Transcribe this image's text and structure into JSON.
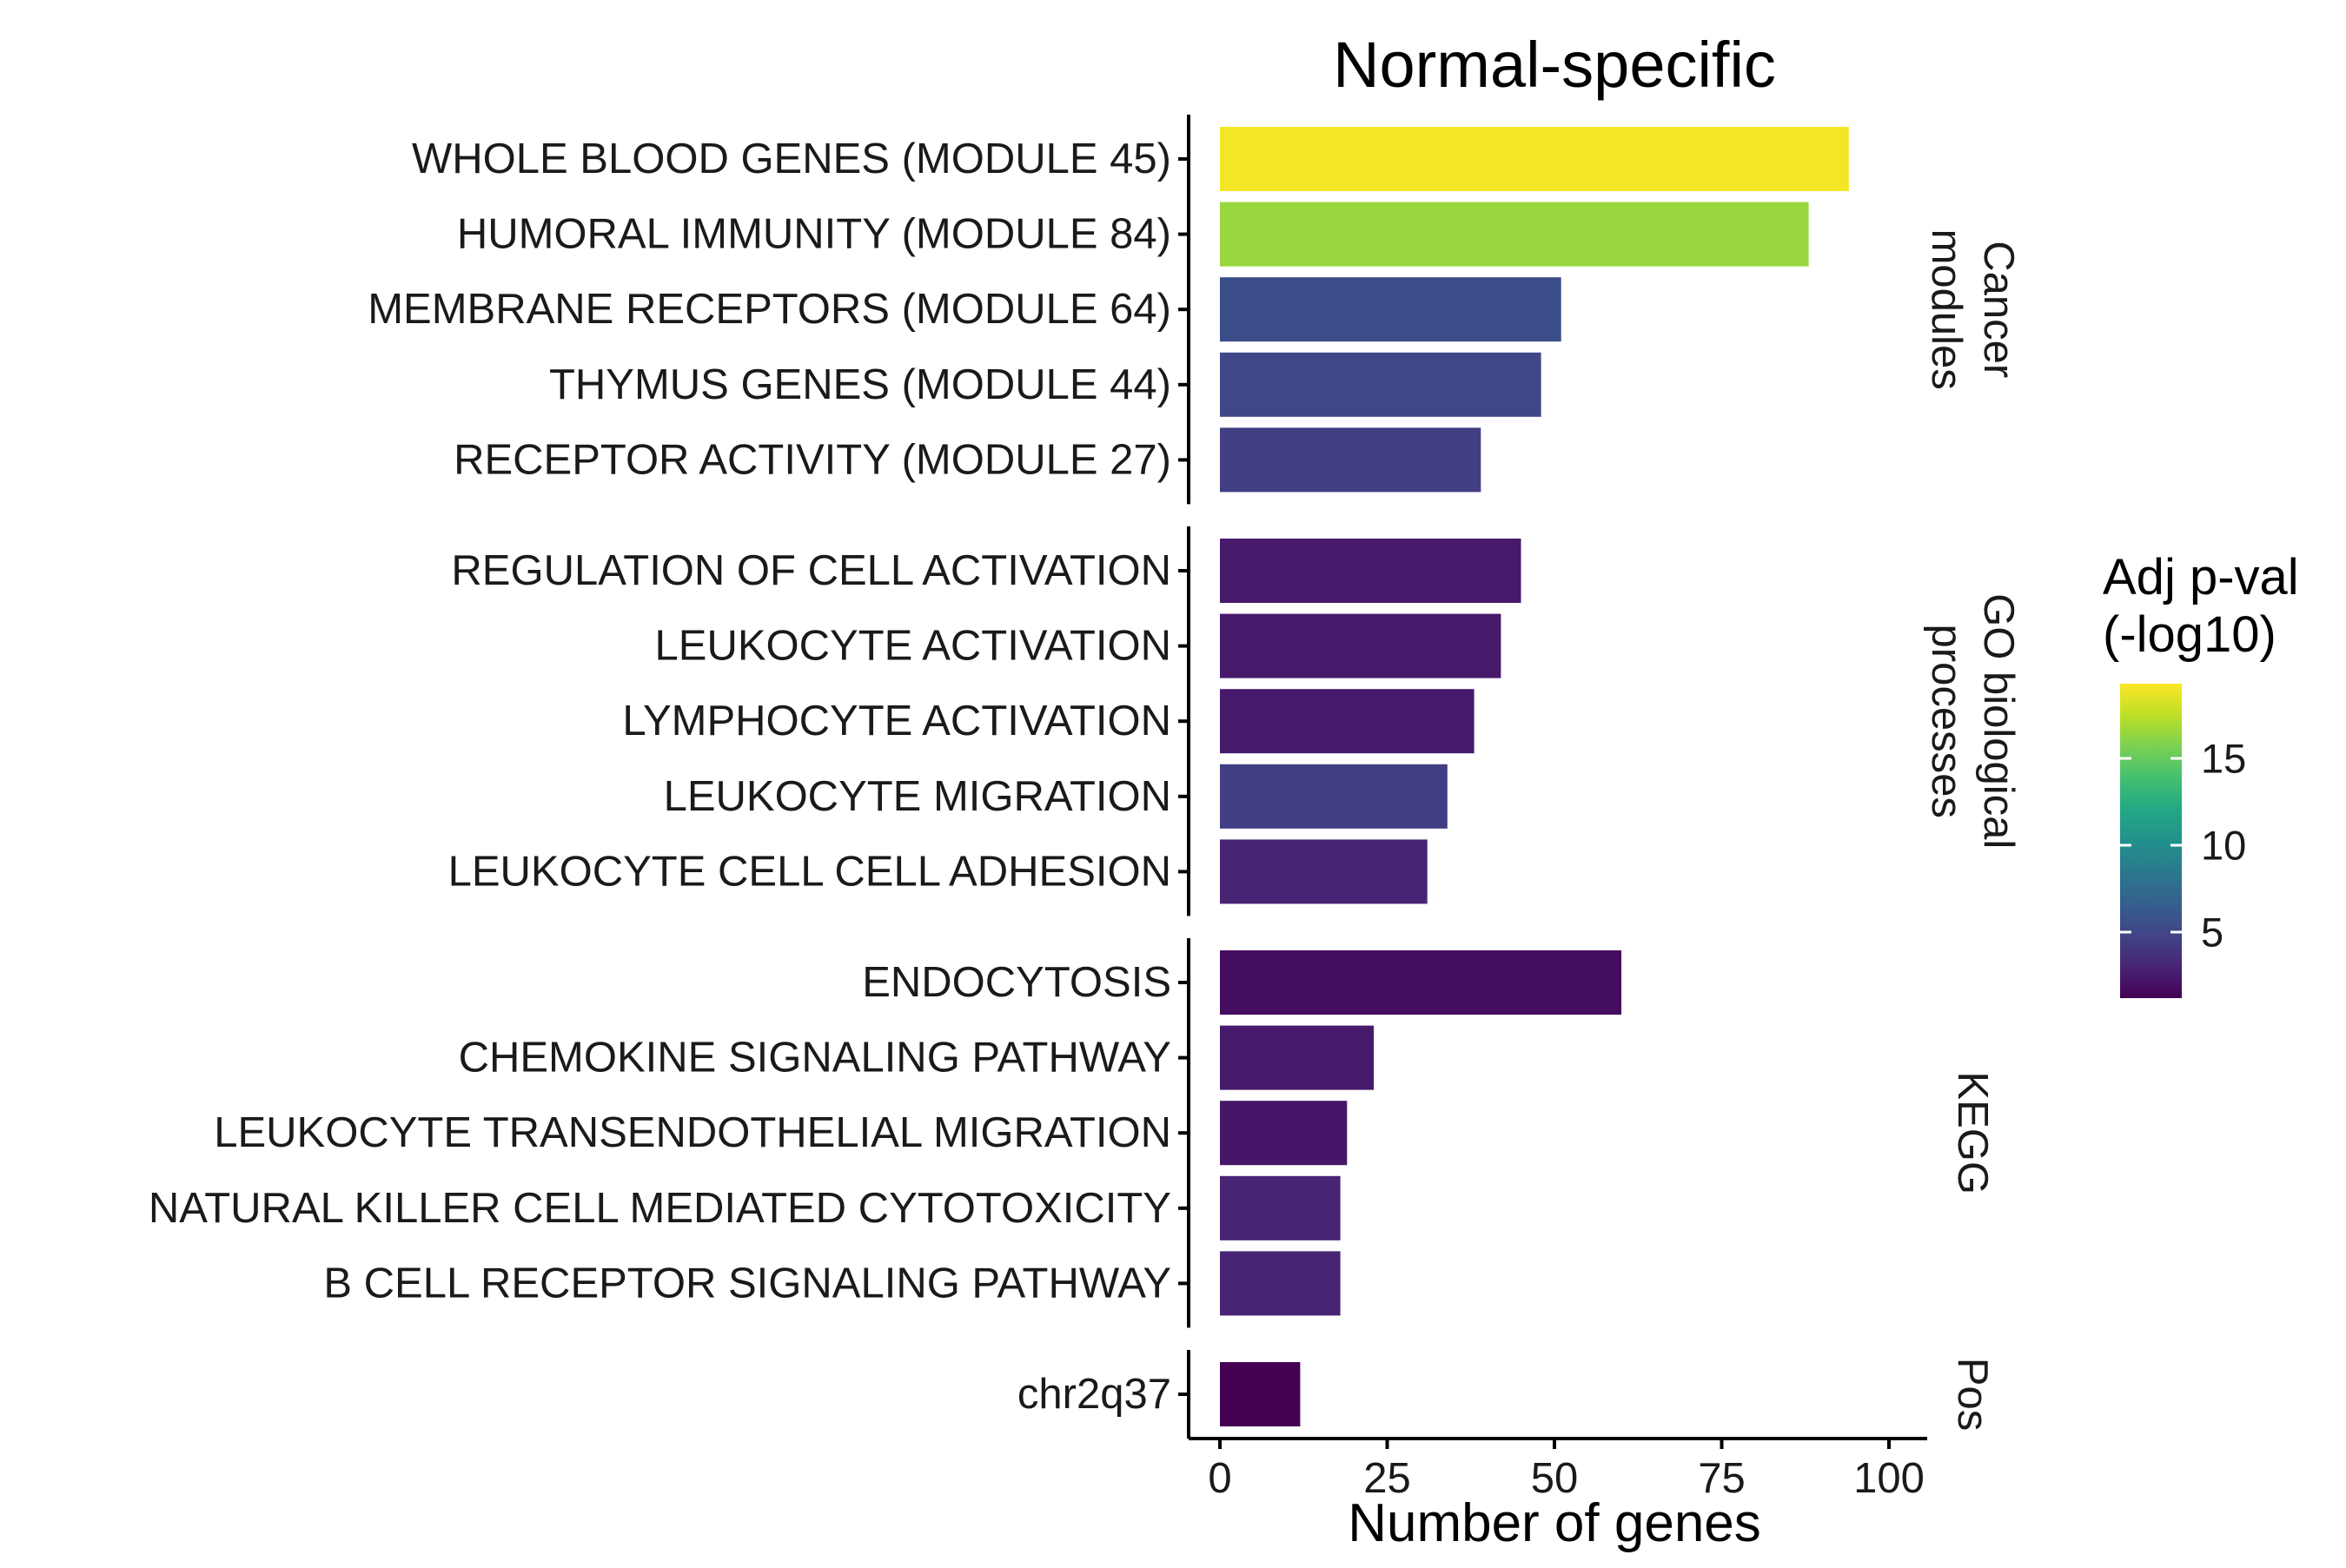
{
  "chart_data": {
    "type": "bar",
    "orientation": "horizontal",
    "title": "Normal-specific",
    "xlabel": "Number of genes",
    "ylabel": "",
    "xlim": [
      0,
      100
    ],
    "x_ticks": [
      0,
      25,
      50,
      75,
      100
    ],
    "grid": false,
    "facets": [
      {
        "label_lines": [
          "Cancer",
          "modules"
        ],
        "bars": [
          {
            "category": "WHOLE BLOOD GENES (MODULE 45)",
            "value": 94,
            "adj_pval_neglog10": 19
          },
          {
            "category": "HUMORAL IMMUNITY (MODULE 84)",
            "value": 88,
            "adj_pval_neglog10": 16.5
          },
          {
            "category": "MEMBRANE RECEPTORS (MODULE 64)",
            "value": 51,
            "adj_pval_neglog10": 5.5
          },
          {
            "category": "THYMUS GENES (MODULE 44)",
            "value": 48,
            "adj_pval_neglog10": 5
          },
          {
            "category": "RECEPTOR ACTIVITY (MODULE 27)",
            "value": 39,
            "adj_pval_neglog10": 4.5
          }
        ]
      },
      {
        "label_lines": [
          "GO biological",
          "processes"
        ],
        "bars": [
          {
            "category": "REGULATION OF CELL ACTIVATION",
            "value": 45,
            "adj_pval_neglog10": 2.5
          },
          {
            "category": "LEUKOCYTE ACTIVATION",
            "value": 42,
            "adj_pval_neglog10": 2.5
          },
          {
            "category": "LYMPHOCYTE ACTIVATION",
            "value": 38,
            "adj_pval_neglog10": 2.5
          },
          {
            "category": "LEUKOCYTE MIGRATION",
            "value": 34,
            "adj_pval_neglog10": 4.5
          },
          {
            "category": "LEUKOCYTE CELL CELL ADHESION",
            "value": 31,
            "adj_pval_neglog10": 3
          }
        ]
      },
      {
        "label_lines": [
          "KEGG"
        ],
        "bars": [
          {
            "category": "ENDOCYTOSIS",
            "value": 60,
            "adj_pval_neglog10": 1.8
          },
          {
            "category": "CHEMOKINE SIGNALING PATHWAY",
            "value": 23,
            "adj_pval_neglog10": 2.5
          },
          {
            "category": "LEUKOCYTE TRANSENDOTHELIAL MIGRATION",
            "value": 19,
            "adj_pval_neglog10": 2.3
          },
          {
            "category": "NATURAL KILLER CELL MEDIATED CYTOTOXICITY",
            "value": 18,
            "adj_pval_neglog10": 3
          },
          {
            "category": "B CELL RECEPTOR SIGNALING PATHWAY",
            "value": 18,
            "adj_pval_neglog10": 3
          }
        ]
      },
      {
        "label_lines": [
          "Pos"
        ],
        "bars": [
          {
            "category": "chr2q37",
            "value": 12,
            "adj_pval_neglog10": 1.2
          }
        ]
      }
    ],
    "legend": {
      "title_lines": [
        "Adj p-val",
        "(-log10)"
      ],
      "ticks": [
        5,
        10,
        15
      ],
      "range": [
        1.2,
        19.3
      ],
      "position": "right"
    },
    "colormap": "viridis"
  }
}
